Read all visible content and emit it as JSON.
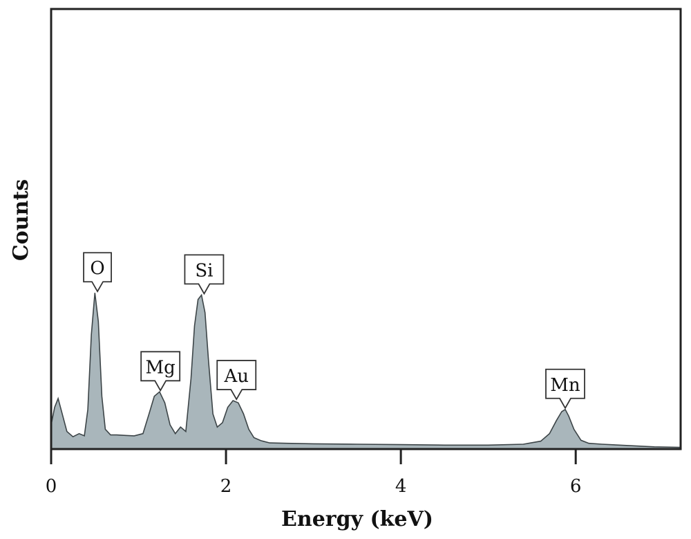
{
  "chart_data": {
    "type": "area",
    "title": "",
    "xlabel": "Energy (keV)",
    "ylabel": "Counts",
    "xlim": [
      0,
      7.2
    ],
    "ylim": [
      0,
      100
    ],
    "xticks": [
      0,
      2,
      4,
      6
    ],
    "grid": false,
    "colors": {
      "fill": "#a9b6bb",
      "line": "#3c4447",
      "frame": "#222222"
    },
    "spectrum": {
      "x": [
        0.0,
        0.04,
        0.08,
        0.12,
        0.18,
        0.25,
        0.32,
        0.38,
        0.42,
        0.46,
        0.5,
        0.54,
        0.58,
        0.62,
        0.68,
        0.75,
        0.85,
        0.95,
        1.05,
        1.12,
        1.18,
        1.24,
        1.3,
        1.36,
        1.42,
        1.48,
        1.54,
        1.6,
        1.64,
        1.68,
        1.72,
        1.76,
        1.8,
        1.85,
        1.9,
        1.96,
        2.02,
        2.08,
        2.14,
        2.2,
        2.26,
        2.32,
        2.4,
        2.5,
        2.7,
        3.0,
        3.5,
        4.0,
        4.5,
        5.0,
        5.4,
        5.6,
        5.7,
        5.78,
        5.84,
        5.88,
        5.92,
        5.98,
        6.06,
        6.15,
        6.3,
        6.6,
        6.9,
        7.2
      ],
      "y": [
        5.5,
        9.5,
        11.5,
        8.5,
        4.0,
        2.8,
        3.5,
        3.0,
        9.0,
        26.0,
        35.5,
        29.0,
        12.0,
        4.5,
        3.2,
        3.2,
        3.1,
        3.0,
        3.5,
        8.0,
        12.0,
        13.0,
        10.5,
        5.5,
        3.5,
        5.0,
        4.0,
        16.0,
        28.0,
        34.0,
        35.0,
        31.0,
        20.0,
        8.0,
        5.0,
        6.0,
        9.5,
        11.0,
        10.5,
        8.0,
        4.5,
        2.6,
        1.9,
        1.4,
        1.3,
        1.2,
        1.1,
        1.0,
        0.9,
        0.9,
        1.1,
        1.8,
        3.5,
        6.5,
        8.5,
        9.0,
        7.5,
        4.5,
        2.0,
        1.3,
        1.1,
        0.8,
        0.5,
        0.4
      ]
    },
    "peak_labels": [
      {
        "label": "O",
        "x": 0.53,
        "y": 35.5
      },
      {
        "label": "Mg",
        "x": 1.25,
        "y": 13.0
      },
      {
        "label": "Si",
        "x": 1.75,
        "y": 35.0
      },
      {
        "label": "Au",
        "x": 2.12,
        "y": 11.0
      },
      {
        "label": "Mn",
        "x": 5.88,
        "y": 9.0
      }
    ]
  }
}
